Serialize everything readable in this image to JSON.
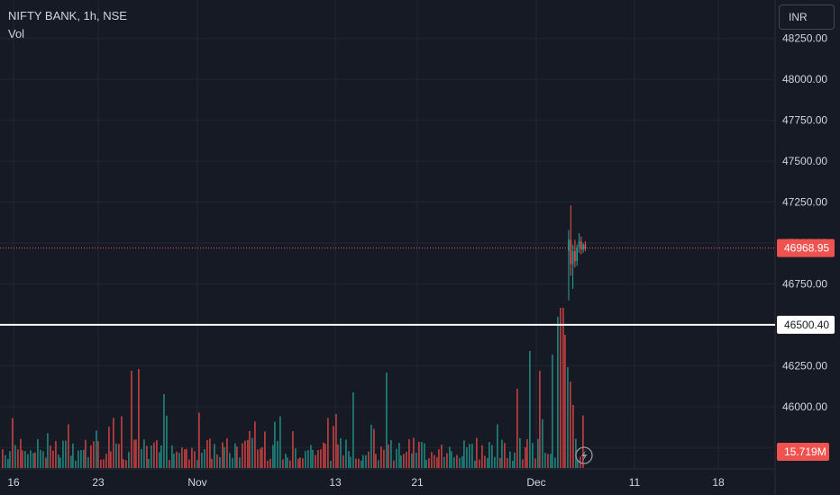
{
  "legend": {
    "symbol": "NIFTY BANK, 1h, NSE",
    "indicator": "Vol"
  },
  "currency_button": "INR",
  "colors": {
    "background": "#161a25",
    "up": "#26a69a",
    "down": "#ef5350",
    "grid": "#232632",
    "text": "#d1d4dc",
    "hline": "#ffffff"
  },
  "chart_data": {
    "type": "candlestick",
    "title": "NIFTY BANK, 1h, NSE",
    "price_axis": {
      "ticks": [
        "48250.00",
        "48000.00",
        "47750.00",
        "47500.00",
        "47250.00",
        "47000.00",
        "46750.00",
        "46500.00",
        "46250.00",
        "46000.00",
        "45750.00"
      ],
      "range": [
        45625,
        48375
      ]
    },
    "time_axis": {
      "ticks": [
        "16",
        "23",
        "Nov",
        "13",
        "21",
        "Dec",
        "11",
        "18"
      ]
    },
    "last_price": {
      "label": "46968.95",
      "value": 46968.95,
      "color": "#ef5350"
    },
    "horizontal_line": {
      "label": "46500.40",
      "value": 46500.4
    },
    "volume_label": {
      "label": "15.719M",
      "color": "#ef5350"
    },
    "candles": [
      {
        "o": 46950,
        "h": 47080,
        "l": 46650,
        "c": 47020
      },
      {
        "o": 47020,
        "h": 47230,
        "l": 46800,
        "c": 46870
      },
      {
        "o": 46870,
        "h": 46990,
        "l": 46720,
        "c": 46950
      },
      {
        "o": 46950,
        "h": 47020,
        "l": 46850,
        "c": 46890
      },
      {
        "o": 46890,
        "h": 46990,
        "l": 46860,
        "c": 46970
      },
      {
        "o": 46970,
        "h": 47060,
        "l": 46940,
        "c": 47010
      },
      {
        "o": 47010,
        "h": 47040,
        "l": 46930,
        "c": 46960
      },
      {
        "o": 46960,
        "h": 47000,
        "l": 46940,
        "c": 46990
      },
      {
        "o": 46990,
        "h": 47010,
        "l": 46950,
        "c": 46968.95
      }
    ]
  }
}
